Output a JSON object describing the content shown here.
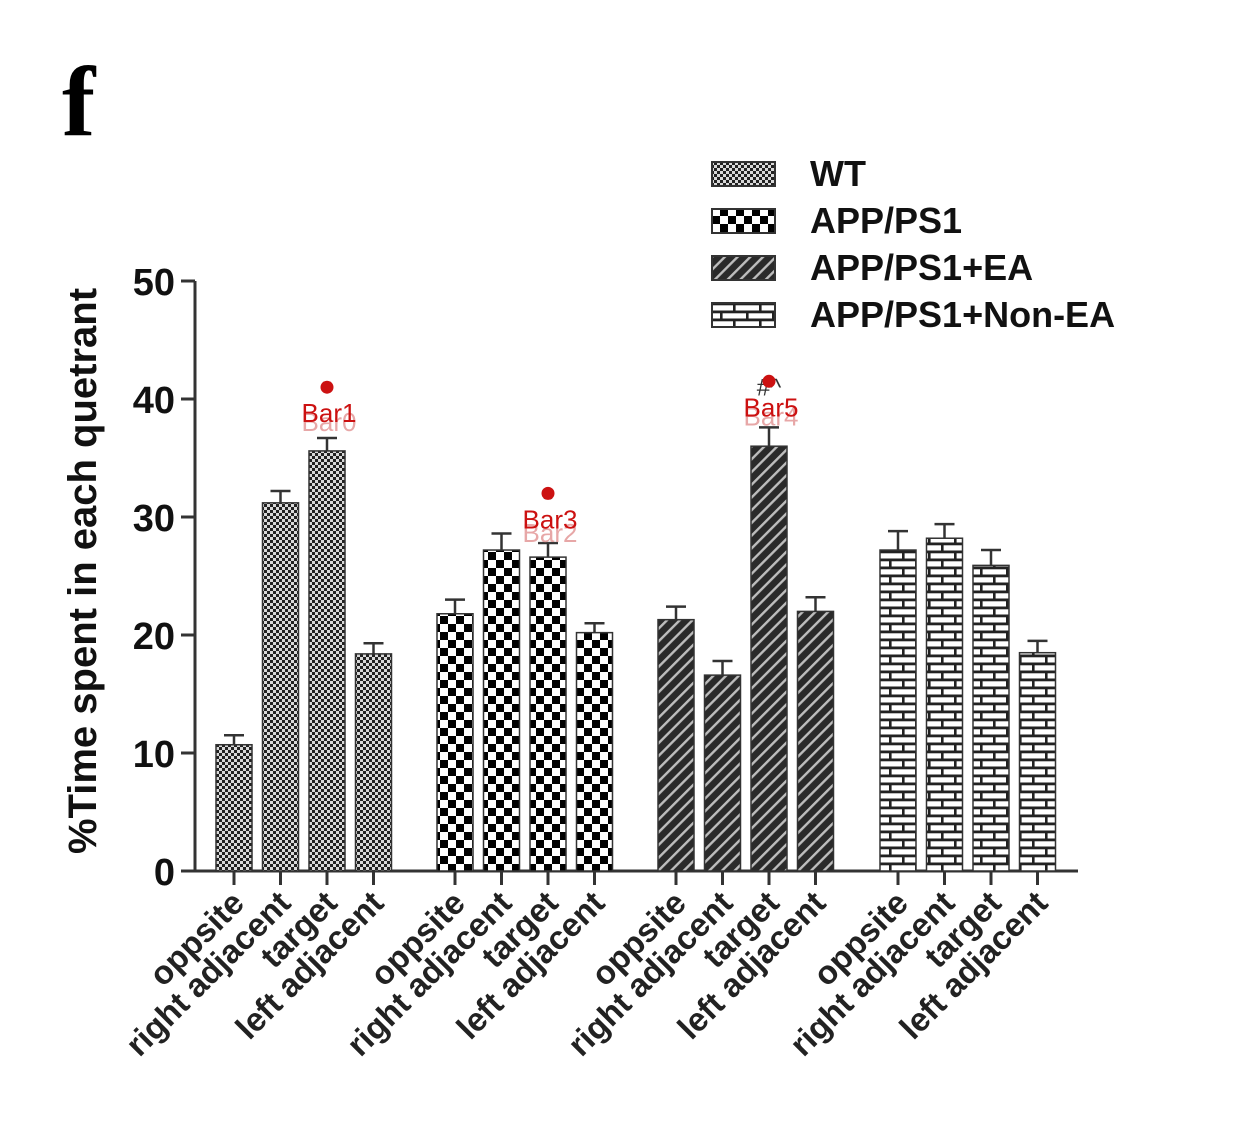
{
  "panel_label": "f",
  "chart_data": {
    "type": "bar",
    "ylabel": "%Time spent in each quetrant",
    "ylim": [
      0,
      50
    ],
    "yticks": [
      0,
      10,
      20,
      30,
      40,
      50
    ],
    "legend_position": "top-right",
    "categories": [
      "oppsite",
      "right adjacent",
      "target",
      "left adjacent"
    ],
    "series": [
      {
        "name": "WT",
        "pattern": "fine-checker",
        "values": [
          10.7,
          31.2,
          35.6,
          18.4
        ],
        "errors": [
          0.8,
          1.0,
          1.1,
          0.9
        ]
      },
      {
        "name": "APP/PS1",
        "pattern": "checkerboard",
        "values": [
          21.8,
          27.2,
          26.6,
          20.2
        ],
        "errors": [
          1.2,
          1.4,
          1.2,
          0.8
        ]
      },
      {
        "name": "APP/PS1+EA",
        "pattern": "diagonal-hatch",
        "values": [
          21.3,
          16.6,
          36.0,
          22.0
        ],
        "errors": [
          1.1,
          1.2,
          1.6,
          1.2
        ]
      },
      {
        "name": "APP/PS1+Non-EA",
        "pattern": "brick",
        "values": [
          27.2,
          28.2,
          25.9,
          18.5
        ],
        "errors": [
          1.6,
          1.2,
          1.3,
          1.0
        ]
      }
    ],
    "significance_marks": [
      {
        "series": 1,
        "category": 2,
        "text": "*"
      },
      {
        "series": 2,
        "category": 2,
        "text": "#^"
      }
    ],
    "overlay_annotations": [
      {
        "label": "Bar0",
        "ghost": true,
        "series": 0,
        "category": 2,
        "value": 38.8
      },
      {
        "label": "Bar1",
        "ghost": false,
        "series": 0,
        "category": 2,
        "value": 41.0
      },
      {
        "label": "Bar2",
        "ghost": true,
        "series": 1,
        "category": 2,
        "value": 29.4
      },
      {
        "label": "Bar3",
        "ghost": false,
        "series": 1,
        "category": 2,
        "value": 32.0
      },
      {
        "label": "Bar4",
        "ghost": true,
        "series": 2,
        "category": 2,
        "value": 39.3
      },
      {
        "label": "Bar5",
        "ghost": false,
        "series": 2,
        "category": 2,
        "value": 41.5
      }
    ]
  }
}
